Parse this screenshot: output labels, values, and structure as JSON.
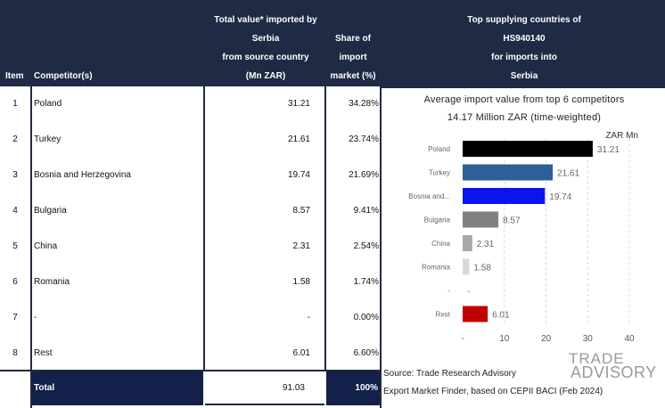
{
  "table": {
    "headers": {
      "item": "Item",
      "competitor": "Competitor(s)",
      "value_lines": [
        "Total value* imported by",
        "Serbia",
        "from source country",
        "(Mn ZAR)"
      ],
      "share_lines": [
        "Share of",
        "import",
        "market (%)"
      ]
    },
    "rows": [
      {
        "item": "1",
        "name": "Poland",
        "value": "31.21",
        "share": "34.28%"
      },
      {
        "item": "2",
        "name": "Turkey",
        "value": "21.61",
        "share": "23.74%"
      },
      {
        "item": "3",
        "name": "Bosnia and Herzegovina",
        "value": "19.74",
        "share": "21.69%"
      },
      {
        "item": "4",
        "name": "Bulgaria",
        "value": "8.57",
        "share": "9.41%"
      },
      {
        "item": "5",
        "name": "China",
        "value": "2.31",
        "share": "2.54%"
      },
      {
        "item": "6",
        "name": "Romania",
        "value": "1.58",
        "share": "1.74%"
      },
      {
        "item": "7",
        "name": "-",
        "value": "-",
        "share": "0.00%"
      },
      {
        "item": "8",
        "name": "Rest",
        "value": "6.01",
        "share": "6.60%"
      }
    ],
    "total": {
      "label": "Total",
      "value": "91.03",
      "share": "100%"
    }
  },
  "right_header_lines": [
    "Top supplying countries of",
    "HS940140",
    "for imports into",
    "Serbia"
  ],
  "chart_data": {
    "type": "bar",
    "orientation": "horizontal",
    "title": "Average import value from top 6 competitors",
    "subtitle": "14.17 Million ZAR (time-weighted)",
    "xlabel": "ZAR Mn",
    "categories": [
      "Poland",
      "Turkey",
      "Bosnia and...",
      "Bulgaria",
      "China",
      "Romania",
      "-",
      "Rest"
    ],
    "values": [
      31.21,
      21.61,
      19.74,
      8.57,
      2.31,
      1.58,
      0,
      6.01
    ],
    "value_labels": [
      "31.21",
      "21.61",
      "19.74",
      "8.57",
      "2.31",
      "1.58",
      "-",
      "6.01"
    ],
    "colors": [
      "#000000",
      "#2e5f96",
      "#0a14f0",
      "#808080",
      "#a9a9a9",
      "#d9d9d9",
      "#ffffff",
      "#c00000"
    ],
    "ticks": [
      "-",
      "10",
      "20",
      "30",
      "40"
    ],
    "xlim": [
      0,
      40
    ],
    "grid": true
  },
  "source": {
    "line1": "Source: Trade Research Advisory",
    "line2": "Export Market Finder, based on CEPII BACI (Feb 2024)"
  },
  "logo": {
    "line1": "TRADE",
    "line2": "ADVISORY"
  }
}
